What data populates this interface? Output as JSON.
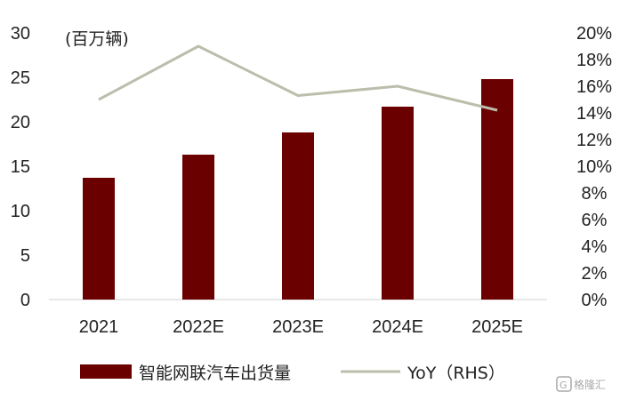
{
  "chart_data": {
    "type": "bar+line",
    "title": "",
    "categories": [
      "2021",
      "2022E",
      "2023E",
      "2024E",
      "2025E"
    ],
    "series": [
      {
        "name": "智能网联汽车出货量",
        "type": "bar",
        "axis": "left",
        "color": "#6b0000",
        "values": [
          13.7,
          16.3,
          18.8,
          21.7,
          24.8
        ]
      },
      {
        "name": "YoY（RHS）",
        "type": "line",
        "axis": "right",
        "color": "#bcbdaa",
        "values": [
          15.0,
          19.0,
          15.3,
          16.0,
          14.2
        ]
      }
    ],
    "left_axis": {
      "unit_label": "(百万辆)",
      "ylim": [
        0,
        30
      ],
      "ticks": [
        "0",
        "5",
        "10",
        "15",
        "20",
        "25",
        "30"
      ]
    },
    "right_axis": {
      "ylim": [
        0,
        20
      ],
      "ticks": [
        "0%",
        "2%",
        "4%",
        "6%",
        "8%",
        "10%",
        "12%",
        "14%",
        "16%",
        "18%",
        "20%"
      ]
    },
    "grid": false,
    "legend_position": "bottom"
  },
  "watermark": {
    "text": "格隆汇",
    "icon": "g-logo-icon"
  }
}
